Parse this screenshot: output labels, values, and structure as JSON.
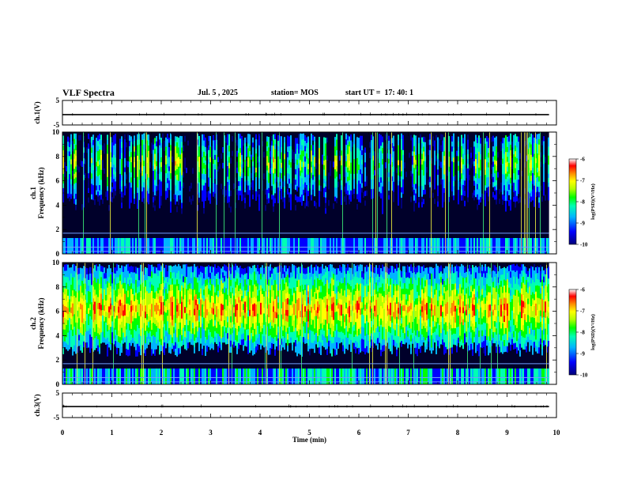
{
  "header": {
    "title": "VLF Spectra",
    "date": "Jul. 5 , 2025",
    "station": "station= MOS",
    "start": "start UT =  17: 40: 1"
  },
  "chart_data": [
    {
      "type": "line",
      "name": "ch1-waveform",
      "ylabel": "ch.1(V)",
      "ylim": [
        -5,
        5
      ],
      "yticks": [
        "5",
        "-5"
      ],
      "series": [
        {
          "name": "ch.1 signal",
          "level": -0.8
        }
      ]
    },
    {
      "type": "heatmap",
      "name": "ch1-spectrogram",
      "ylabel": "ch.1\nFrequency (kHz)",
      "ylim": [
        0,
        10
      ],
      "yticks": [
        "0",
        "2",
        "4",
        "6",
        "8",
        "10"
      ],
      "intensity_profile": {
        "background_bands_khz": [
          [
            4.5,
            9.5
          ]
        ],
        "peak_khz": 7.5,
        "level": "low"
      },
      "colorbar": {
        "label": "log(PSD)(V²/Hz)",
        "range": [
          -10,
          -6
        ],
        "ticks": [
          "-6",
          "-7",
          "-8",
          "-9",
          "-10"
        ]
      }
    },
    {
      "type": "heatmap",
      "name": "ch2-spectrogram",
      "ylabel": "ch.2\nFrequency (kHz)",
      "ylim": [
        0,
        10
      ],
      "yticks": [
        "0",
        "2",
        "4",
        "6",
        "8",
        "10"
      ],
      "intensity_profile": {
        "background_bands_khz": [
          [
            3.5,
            9.5
          ]
        ],
        "peak_khz": 6.2,
        "level": "high"
      },
      "colorbar": {
        "label": "log(PSD)(V²/Hz)",
        "range": [
          -10,
          -6
        ],
        "ticks": [
          "-6",
          "-7",
          "-8",
          "-9",
          "-10"
        ]
      }
    },
    {
      "type": "line",
      "name": "ch3-waveform",
      "ylabel": "ch.3(V)",
      "ylim": [
        -5,
        5
      ],
      "yticks": [
        "5",
        "-5"
      ],
      "series": [
        {
          "name": "ch.3 signal",
          "level": -0.5
        }
      ]
    }
  ],
  "xaxis": {
    "label": "Time (min)",
    "range": [
      0,
      10
    ],
    "ticks": [
      "0",
      "1",
      "2",
      "3",
      "4",
      "5",
      "6",
      "7",
      "8",
      "9",
      "10"
    ],
    "data_end_min": 9.85
  },
  "colors": {
    "colormap": [
      "#00007a",
      "#0000ff",
      "#00b4ff",
      "#00ffb4",
      "#00ff00",
      "#b4ff00",
      "#ffff00",
      "#ff8c00",
      "#ff0000",
      "#ffffff"
    ]
  }
}
